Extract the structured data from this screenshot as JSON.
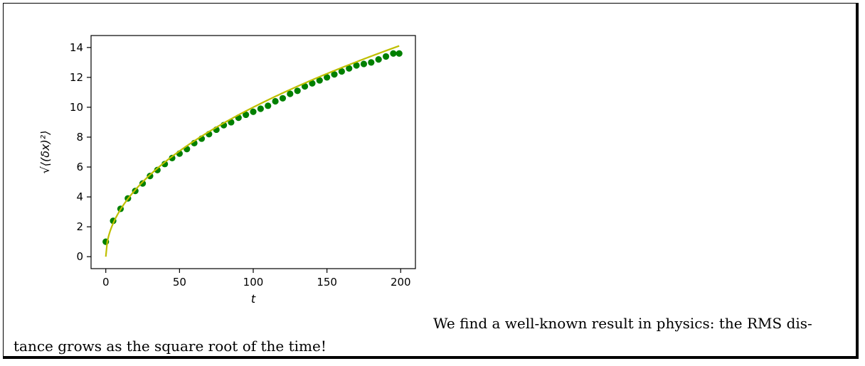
{
  "caption": {
    "line1": "We find a well-known result in physics: the RMS dis-",
    "line2": "tance grows as the square root of the time!"
  },
  "chart_data": {
    "type": "scatter",
    "xlabel": "t",
    "ylabel": "√⟨(δx)²⟩",
    "xlim": [
      -10,
      210
    ],
    "ylim": [
      -0.8,
      14.8
    ],
    "xticks": [
      0,
      50,
      100,
      150,
      200
    ],
    "yticks": [
      0,
      2,
      4,
      6,
      8,
      10,
      12,
      14
    ],
    "grid": false,
    "series": [
      {
        "kind": "scatter",
        "color": "#008000",
        "x": [
          0,
          5,
          10,
          15,
          20,
          25,
          30,
          35,
          40,
          45,
          50,
          55,
          60,
          65,
          70,
          75,
          80,
          85,
          90,
          95,
          100,
          105,
          110,
          115,
          120,
          125,
          130,
          135,
          140,
          145,
          150,
          155,
          160,
          165,
          170,
          175,
          180,
          185,
          190,
          195,
          199
        ],
        "y": [
          1.0,
          2.4,
          3.2,
          3.9,
          4.4,
          4.9,
          5.4,
          5.8,
          6.2,
          6.6,
          6.9,
          7.2,
          7.6,
          7.9,
          8.2,
          8.5,
          8.8,
          9.0,
          9.3,
          9.5,
          9.7,
          9.9,
          10.1,
          10.4,
          10.6,
          10.9,
          11.1,
          11.4,
          11.6,
          11.8,
          12.0,
          12.2,
          12.4,
          12.6,
          12.8,
          12.9,
          13.0,
          13.2,
          13.4,
          13.6,
          13.6
        ]
      },
      {
        "kind": "line",
        "color": "#bfbf00",
        "function": "sqrt",
        "x_range": [
          0,
          199
        ]
      }
    ]
  }
}
